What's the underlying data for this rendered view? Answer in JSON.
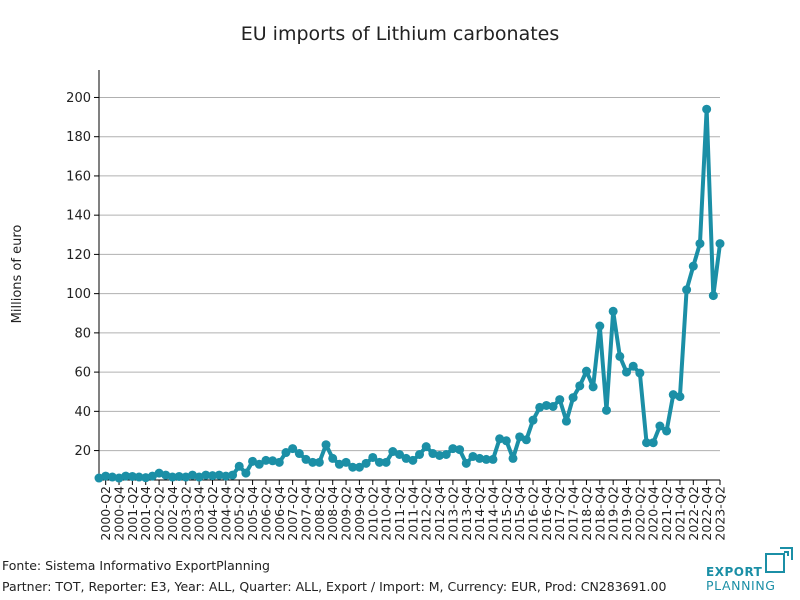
{
  "chart_data": {
    "type": "line",
    "title": "EU imports of Lithium carbonates",
    "ylabel": "Millions of euro",
    "xlabel": "",
    "ylim": [
      5,
      214
    ],
    "yticks": [
      20,
      40,
      60,
      80,
      100,
      120,
      140,
      160,
      180,
      200
    ],
    "grid": "horizontal",
    "color": "#1b8fa6",
    "x_tick_labels": [
      "2000-Q2",
      "2000-Q4",
      "2001-Q2",
      "2001-Q4",
      "2002-Q2",
      "2002-Q4",
      "2003-Q2",
      "2003-Q4",
      "2004-Q2",
      "2004-Q4",
      "2005-Q2",
      "2005-Q4",
      "2006-Q2",
      "2006-Q4",
      "2007-Q2",
      "2007-Q4",
      "2008-Q2",
      "2008-Q4",
      "2009-Q2",
      "2009-Q4",
      "2010-Q2",
      "2010-Q4",
      "2011-Q2",
      "2011-Q4",
      "2012-Q2",
      "2012-Q4",
      "2013-Q2",
      "2013-Q4",
      "2014-Q2",
      "2014-Q4",
      "2015-Q2",
      "2015-Q4",
      "2016-Q2",
      "2016-Q4",
      "2017-Q2",
      "2017-Q4",
      "2018-Q2",
      "2018-Q4",
      "2019-Q2",
      "2019-Q4",
      "2020-Q2",
      "2020-Q4",
      "2021-Q2",
      "2021-Q4",
      "2022-Q2",
      "2022-Q4",
      "2023-Q2"
    ],
    "x": [
      "2000-Q1",
      "2000-Q2",
      "2000-Q3",
      "2000-Q4",
      "2001-Q1",
      "2001-Q2",
      "2001-Q3",
      "2001-Q4",
      "2002-Q1",
      "2002-Q2",
      "2002-Q3",
      "2002-Q4",
      "2003-Q1",
      "2003-Q2",
      "2003-Q3",
      "2003-Q4",
      "2004-Q1",
      "2004-Q2",
      "2004-Q3",
      "2004-Q4",
      "2005-Q1",
      "2005-Q2",
      "2005-Q3",
      "2005-Q4",
      "2006-Q1",
      "2006-Q2",
      "2006-Q3",
      "2006-Q4",
      "2007-Q1",
      "2007-Q2",
      "2007-Q3",
      "2007-Q4",
      "2008-Q1",
      "2008-Q2",
      "2008-Q3",
      "2008-Q4",
      "2009-Q1",
      "2009-Q2",
      "2009-Q3",
      "2009-Q4",
      "2010-Q1",
      "2010-Q2",
      "2010-Q3",
      "2010-Q4",
      "2011-Q1",
      "2011-Q2",
      "2011-Q3",
      "2011-Q4",
      "2012-Q1",
      "2012-Q2",
      "2012-Q3",
      "2012-Q4",
      "2013-Q1",
      "2013-Q2",
      "2013-Q3",
      "2013-Q4",
      "2014-Q1",
      "2014-Q2",
      "2014-Q3",
      "2014-Q4",
      "2015-Q1",
      "2015-Q2",
      "2015-Q3",
      "2015-Q4",
      "2016-Q1",
      "2016-Q2",
      "2016-Q3",
      "2016-Q4",
      "2017-Q1",
      "2017-Q2",
      "2017-Q3",
      "2017-Q4",
      "2018-Q1",
      "2018-Q2",
      "2018-Q3",
      "2018-Q4",
      "2019-Q1",
      "2019-Q2",
      "2019-Q3",
      "2019-Q4",
      "2020-Q1",
      "2020-Q2",
      "2020-Q3",
      "2020-Q4",
      "2021-Q1",
      "2021-Q2",
      "2021-Q3",
      "2021-Q4",
      "2022-Q1",
      "2022-Q2",
      "2022-Q3",
      "2022-Q4",
      "2023-Q1",
      "2023-Q2"
    ],
    "series": [
      {
        "values": [
          6,
          7,
          6.5,
          6,
          7,
          6.8,
          6.5,
          6.2,
          7,
          8.5,
          7.5,
          6.5,
          6.8,
          6.5,
          7.5,
          6.5,
          7.5,
          7.2,
          7.5,
          7,
          7.5,
          12,
          8.5,
          14.5,
          13,
          15,
          14.8,
          14,
          19,
          21,
          18.5,
          15.5,
          14,
          14,
          23,
          16,
          13,
          14,
          11.5,
          11.5,
          13.5,
          16.5,
          14,
          14,
          19.5,
          18,
          16,
          15,
          18,
          22,
          18.5,
          17.5,
          18,
          21,
          20.5,
          13.5,
          17,
          16,
          15.5,
          15.5,
          26,
          25,
          16,
          27,
          25.5,
          35.5,
          42,
          43,
          42.5,
          46,
          35,
          47,
          53,
          60.5,
          52.5,
          83.5,
          40.5,
          91,
          68,
          60,
          63,
          59.5,
          24,
          24,
          32.5,
          30,
          48.5,
          47.5,
          102,
          114,
          125.5,
          194,
          99,
          125.5
        ]
      }
    ]
  },
  "footer": {
    "source": "Fonte: Sistema Informativo ExportPlanning",
    "params": "Partner: TOT, Reporter: E3, Year: ALL, Quarter: ALL, Export / Import: M, Currency: EUR, Prod: CN283691.00"
  },
  "logo": {
    "line1": "EXPORT",
    "line2": "PLANNING",
    "color": "#1b8fa6"
  }
}
